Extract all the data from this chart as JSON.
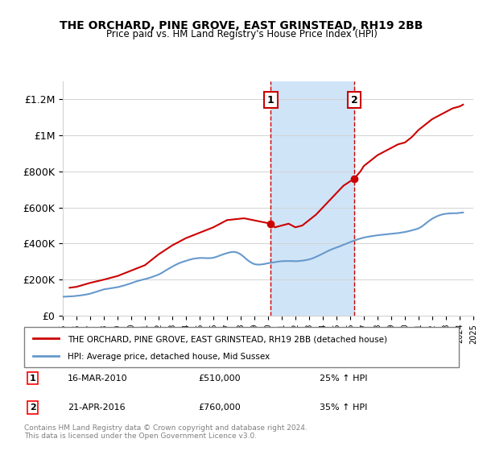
{
  "title": "THE ORCHARD, PINE GROVE, EAST GRINSTEAD, RH19 2BB",
  "subtitle": "Price paid vs. HM Land Registry's House Price Index (HPI)",
  "legend_line1": "THE ORCHARD, PINE GROVE, EAST GRINSTEAD, RH19 2BB (detached house)",
  "legend_line2": "HPI: Average price, detached house, Mid Sussex",
  "annotation1_label": "1",
  "annotation1_date": "16-MAR-2010",
  "annotation1_price": "£510,000",
  "annotation1_hpi": "25% ↑ HPI",
  "annotation1_year": 2010.2,
  "annotation1_value": 510000,
  "annotation2_label": "2",
  "annotation2_date": "21-APR-2016",
  "annotation2_price": "£760,000",
  "annotation2_hpi": "35% ↑ HPI",
  "annotation2_year": 2016.3,
  "annotation2_value": 760000,
  "xmin": 1995,
  "xmax": 2025,
  "ymin": 0,
  "ymax": 1300000,
  "yticks": [
    0,
    200000,
    400000,
    600000,
    800000,
    1000000,
    1200000
  ],
  "ytick_labels": [
    "£0",
    "£200K",
    "£400K",
    "£600K",
    "£800K",
    "£1M",
    "£1.2M"
  ],
  "red_color": "#cc0000",
  "blue_color": "#6699cc",
  "shade_color": "#d0e4f7",
  "footer": "Contains HM Land Registry data © Crown copyright and database right 2024.\nThis data is licensed under the Open Government Licence v3.0.",
  "hpi_years": [
    1995,
    1995.25,
    1995.5,
    1995.75,
    1996,
    1996.25,
    1996.5,
    1996.75,
    1997,
    1997.25,
    1997.5,
    1997.75,
    1998,
    1998.25,
    1998.5,
    1998.75,
    1999,
    1999.25,
    1999.5,
    1999.75,
    2000,
    2000.25,
    2000.5,
    2000.75,
    2001,
    2001.25,
    2001.5,
    2001.75,
    2002,
    2002.25,
    2002.5,
    2002.75,
    2003,
    2003.25,
    2003.5,
    2003.75,
    2004,
    2004.25,
    2004.5,
    2004.75,
    2005,
    2005.25,
    2005.5,
    2005.75,
    2006,
    2006.25,
    2006.5,
    2006.75,
    2007,
    2007.25,
    2007.5,
    2007.75,
    2008,
    2008.25,
    2008.5,
    2008.75,
    2009,
    2009.25,
    2009.5,
    2009.75,
    2010,
    2010.25,
    2010.5,
    2010.75,
    2011,
    2011.25,
    2011.5,
    2011.75,
    2012,
    2012.25,
    2012.5,
    2012.75,
    2013,
    2013.25,
    2013.5,
    2013.75,
    2014,
    2014.25,
    2014.5,
    2014.75,
    2015,
    2015.25,
    2015.5,
    2015.75,
    2016,
    2016.25,
    2016.5,
    2016.75,
    2017,
    2017.25,
    2017.5,
    2017.75,
    2018,
    2018.25,
    2018.5,
    2018.75,
    2019,
    2019.25,
    2019.5,
    2019.75,
    2020,
    2020.25,
    2020.5,
    2020.75,
    2021,
    2021.25,
    2021.5,
    2021.75,
    2022,
    2022.25,
    2022.5,
    2022.75,
    2023,
    2023.25,
    2023.5,
    2023.75,
    2024,
    2024.25
  ],
  "hpi_values": [
    105000,
    106000,
    107000,
    108000,
    110000,
    112000,
    115000,
    118000,
    122000,
    128000,
    134000,
    140000,
    146000,
    149000,
    152000,
    155000,
    158000,
    163000,
    168000,
    174000,
    180000,
    187000,
    193000,
    198000,
    203000,
    208000,
    214000,
    221000,
    228000,
    238000,
    250000,
    261000,
    272000,
    282000,
    291000,
    298000,
    304000,
    310000,
    315000,
    318000,
    320000,
    320000,
    319000,
    319000,
    321000,
    327000,
    334000,
    341000,
    347000,
    352000,
    354000,
    350000,
    340000,
    325000,
    308000,
    295000,
    286000,
    283000,
    284000,
    287000,
    291000,
    294000,
    297000,
    300000,
    302000,
    303000,
    303000,
    303000,
    302000,
    303000,
    305000,
    308000,
    312000,
    318000,
    326000,
    335000,
    344000,
    354000,
    363000,
    371000,
    378000,
    385000,
    393000,
    400000,
    408000,
    415000,
    422000,
    428000,
    433000,
    437000,
    440000,
    443000,
    446000,
    448000,
    450000,
    452000,
    454000,
    456000,
    458000,
    461000,
    464000,
    468000,
    473000,
    478000,
    484000,
    495000,
    510000,
    525000,
    538000,
    548000,
    556000,
    562000,
    565000,
    567000,
    568000,
    568000,
    570000,
    572000
  ],
  "red_years": [
    1995.5,
    1996.0,
    1997.0,
    1998.0,
    1999.0,
    2000.0,
    2001.0,
    2002.0,
    2003.0,
    2004.0,
    2005.0,
    2006.0,
    2007.0,
    2008.25,
    2010.2,
    2010.5,
    2011.0,
    2011.5,
    2012.0,
    2012.5,
    2013.0,
    2013.5,
    2014.0,
    2014.5,
    2015.0,
    2015.5,
    2016.3,
    2016.75,
    2017.0,
    2017.5,
    2018.0,
    2018.5,
    2019.0,
    2019.5,
    2020.0,
    2020.5,
    2021.0,
    2021.5,
    2022.0,
    2022.5,
    2023.0,
    2023.5,
    2024.0,
    2024.25
  ],
  "red_values": [
    155000,
    160000,
    182000,
    200000,
    220000,
    250000,
    280000,
    340000,
    390000,
    430000,
    460000,
    490000,
    530000,
    540000,
    510000,
    490000,
    500000,
    510000,
    490000,
    500000,
    530000,
    560000,
    600000,
    640000,
    680000,
    720000,
    760000,
    800000,
    830000,
    860000,
    890000,
    910000,
    930000,
    950000,
    960000,
    990000,
    1030000,
    1060000,
    1090000,
    1110000,
    1130000,
    1150000,
    1160000,
    1170000
  ]
}
